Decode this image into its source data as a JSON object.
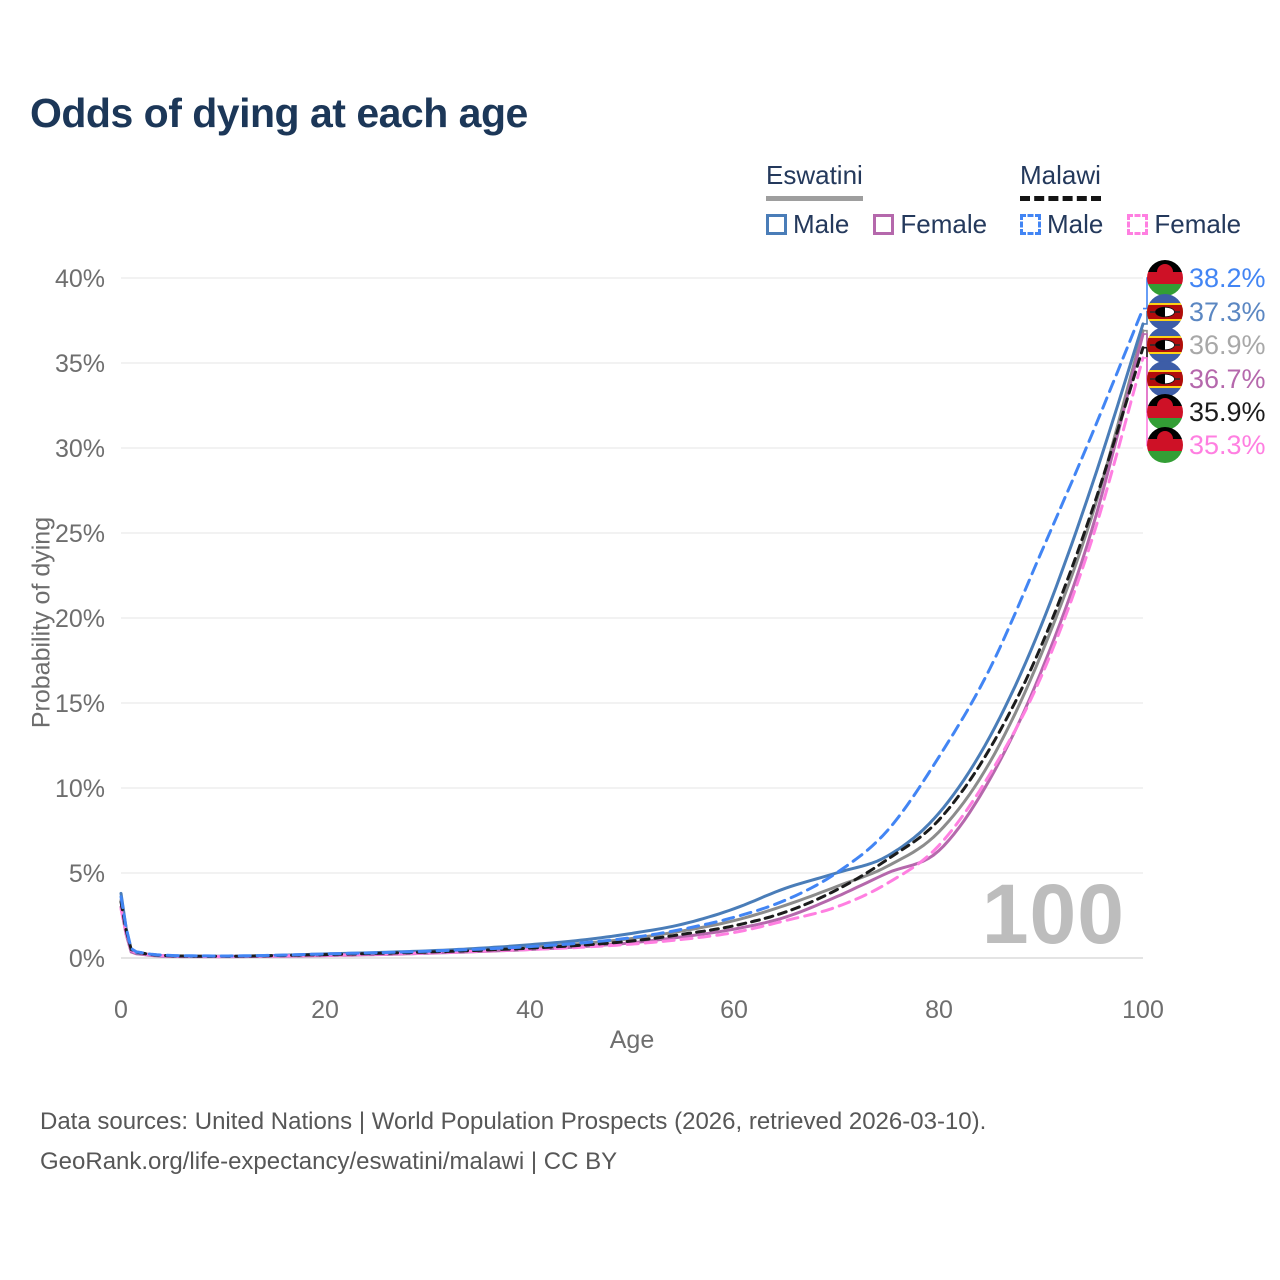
{
  "title": "Odds of dying at each age",
  "legend": {
    "groups": [
      {
        "country": "Eswatini",
        "items": [
          {
            "label": "Male"
          },
          {
            "label": "Female"
          }
        ]
      },
      {
        "country": "Malawi",
        "items": [
          {
            "label": "Male"
          },
          {
            "label": "Female"
          }
        ]
      }
    ]
  },
  "axes": {
    "y": {
      "title": "Probability of dying",
      "ticks": [
        "40%",
        "35%",
        "30%",
        "25%",
        "20%",
        "15%",
        "10%",
        "5%",
        "0%"
      ]
    },
    "x": {
      "title": "Age",
      "ticks": [
        "0",
        "20",
        "40",
        "60",
        "80",
        "100"
      ]
    }
  },
  "watermark": "100",
  "footer": {
    "line1": "Data sources: United Nations | World Population Prospects (2026, retrieved 2026-03-10).",
    "line2": "GeoRank.org/life-expectancy/eswatini/malawi | CC BY"
  },
  "colors": {
    "title_text": "#1c3758",
    "legend_text": "#24395c",
    "eswatini_underline": "#9e9e9e",
    "malawi_underline": "#141414",
    "axis_text": "#6e6e6e",
    "gridline": "#ededed",
    "zeroline": "#dcdcdc",
    "watermark": "#bdbdbd"
  },
  "end_labels": [
    {
      "series": "Malawi Male",
      "flag": "malawi",
      "value": "38.2%",
      "color": "#4285f4"
    },
    {
      "series": "Eswatini Male",
      "flag": "eswatini",
      "value": "37.3%",
      "color": "#5b87c2"
    },
    {
      "series": "Eswatini Both sexes",
      "flag": "eswatini",
      "value": "36.9%",
      "color": "#a8a8a8"
    },
    {
      "series": "Eswatini Female",
      "flag": "eswatini",
      "value": "36.7%",
      "color": "#b568ac"
    },
    {
      "series": "Malawi Both sexes",
      "flag": "malawi",
      "value": "35.9%",
      "color": "#1c1c1c"
    },
    {
      "series": "Malawi Female",
      "flag": "malawi",
      "value": "35.3%",
      "color": "#ff7fe1"
    }
  ],
  "chart_data": {
    "type": "line",
    "title": "Odds of dying at each age",
    "xlabel": "Age",
    "ylabel": "Probability of dying",
    "xlim": [
      0,
      100
    ],
    "ylim_percent": [
      0,
      40
    ],
    "grid": "horizontal",
    "legend_position": "top-right",
    "x": [
      0,
      1,
      2,
      5,
      10,
      15,
      20,
      25,
      30,
      35,
      40,
      45,
      50,
      55,
      60,
      65,
      70,
      75,
      80,
      85,
      90,
      95,
      100
    ],
    "series": [
      {
        "name": "Eswatini Both sexes",
        "country": "Eswatini",
        "sex": "both",
        "style": "solid",
        "color": "#8c8c8c",
        "values_percent": [
          3.4,
          0.4,
          0.25,
          0.11,
          0.09,
          0.12,
          0.19,
          0.26,
          0.35,
          0.47,
          0.63,
          0.85,
          1.15,
          1.6,
          2.2,
          3.1,
          4.2,
          5.4,
          7.4,
          11.5,
          17.8,
          26.0,
          36.9
        ],
        "end_value_percent": 36.9
      },
      {
        "name": "Eswatini Female",
        "country": "Eswatini",
        "sex": "female",
        "style": "solid",
        "color": "#b568ac",
        "values_percent": [
          3.0,
          0.35,
          0.22,
          0.09,
          0.08,
          0.1,
          0.14,
          0.2,
          0.28,
          0.38,
          0.5,
          0.66,
          0.9,
          1.25,
          1.7,
          2.4,
          3.6,
          5.0,
          6.3,
          10.5,
          16.8,
          25.2,
          36.7
        ],
        "end_value_percent": 36.7
      },
      {
        "name": "Eswatini Male",
        "country": "Eswatini",
        "sex": "male",
        "style": "solid",
        "color": "#4a7db8",
        "values_percent": [
          3.8,
          0.45,
          0.28,
          0.12,
          0.1,
          0.15,
          0.24,
          0.32,
          0.42,
          0.57,
          0.78,
          1.05,
          1.45,
          2.0,
          2.9,
          4.1,
          5.0,
          6.0,
          8.5,
          13.0,
          19.5,
          27.8,
          37.3
        ],
        "end_value_percent": 37.3
      },
      {
        "name": "Malawi Female",
        "country": "Malawi",
        "sex": "female",
        "style": "dashed",
        "color": "#ff7fe1",
        "values_percent": [
          2.9,
          0.45,
          0.27,
          0.12,
          0.09,
          0.12,
          0.16,
          0.22,
          0.3,
          0.4,
          0.5,
          0.63,
          0.82,
          1.1,
          1.5,
          2.2,
          3.0,
          4.4,
          6.6,
          10.8,
          16.5,
          24.6,
          35.3
        ],
        "end_value_percent": 35.3
      },
      {
        "name": "Malawi Both sexes",
        "country": "Malawi",
        "sex": "both",
        "style": "dashed",
        "color": "#1c1c1c",
        "values_percent": [
          3.3,
          0.5,
          0.3,
          0.13,
          0.1,
          0.14,
          0.2,
          0.27,
          0.35,
          0.45,
          0.58,
          0.75,
          1.0,
          1.4,
          1.9,
          2.7,
          4.0,
          5.8,
          8.1,
          12.3,
          18.3,
          26.3,
          35.9
        ],
        "end_value_percent": 35.9
      },
      {
        "name": "Malawi Male",
        "country": "Malawi",
        "sex": "male",
        "style": "dashed",
        "color": "#4285f4",
        "values_percent": [
          3.6,
          0.55,
          0.32,
          0.15,
          0.12,
          0.16,
          0.24,
          0.31,
          0.4,
          0.52,
          0.67,
          0.88,
          1.2,
          1.7,
          2.4,
          3.4,
          5.0,
          7.5,
          11.8,
          17.0,
          23.8,
          30.8,
          38.2
        ],
        "end_value_percent": 38.2
      }
    ]
  }
}
